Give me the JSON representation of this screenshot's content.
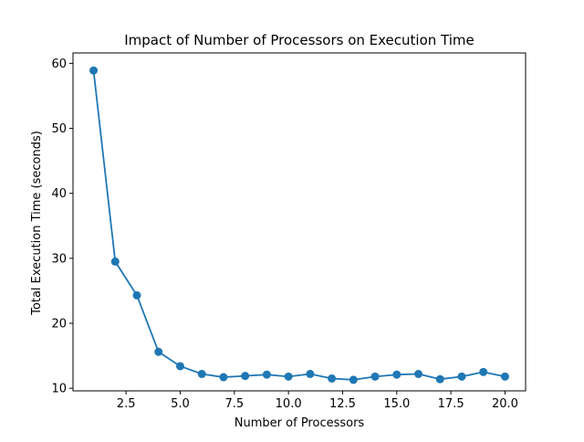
{
  "chart_data": {
    "type": "line",
    "title": "Impact of Number of Processors on Execution Time",
    "xlabel": "Number of Processors",
    "ylabel": "Total Execution Time (seconds)",
    "xlim": [
      0.05,
      20.95
    ],
    "ylim": [
      9.6,
      61.6
    ],
    "xticks": [
      2.5,
      5.0,
      7.5,
      10.0,
      12.5,
      15.0,
      17.5,
      20.0
    ],
    "xtick_labels": [
      "2.5",
      "5.0",
      "7.5",
      "10.0",
      "12.5",
      "15.0",
      "17.5",
      "20.0"
    ],
    "yticks": [
      10,
      20,
      30,
      40,
      50,
      60
    ],
    "ytick_labels": [
      "10",
      "20",
      "30",
      "40",
      "50",
      "60"
    ],
    "grid": false,
    "legend": "none",
    "series": [
      {
        "color": "#1f77b4",
        "marker": "circle",
        "x": [
          1,
          2,
          3,
          4,
          5,
          6,
          7,
          8,
          9,
          10,
          11,
          12,
          13,
          14,
          15,
          16,
          17,
          18,
          19,
          20
        ],
        "y": [
          58.9,
          29.5,
          24.3,
          15.6,
          13.4,
          12.2,
          11.7,
          11.9,
          12.1,
          11.8,
          12.2,
          11.5,
          11.3,
          11.8,
          12.1,
          12.2,
          11.4,
          11.8,
          12.5,
          11.8
        ]
      }
    ]
  }
}
